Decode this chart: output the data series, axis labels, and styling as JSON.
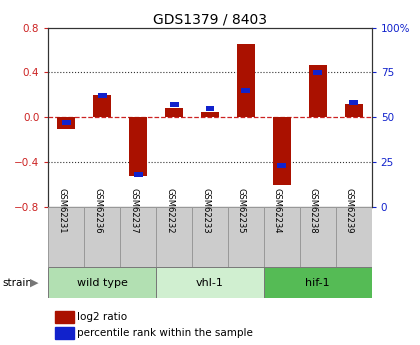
{
  "title": "GDS1379 / 8403",
  "samples": [
    "GSM62231",
    "GSM62236",
    "GSM62237",
    "GSM62232",
    "GSM62233",
    "GSM62235",
    "GSM62234",
    "GSM62238",
    "GSM62239"
  ],
  "log2_ratio": [
    -0.1,
    0.2,
    -0.52,
    0.08,
    0.05,
    0.65,
    -0.6,
    0.47,
    0.12
  ],
  "percentile_rank": [
    47,
    62,
    18,
    57,
    55,
    65,
    23,
    75,
    58
  ],
  "groups": [
    {
      "label": "wild type",
      "start": 0,
      "end": 3,
      "color": "#b2e0b2"
    },
    {
      "label": "vhl-1",
      "start": 3,
      "end": 6,
      "color": "#d0efd0"
    },
    {
      "label": "hif-1",
      "start": 6,
      "end": 9,
      "color": "#55bb55"
    }
  ],
  "ylim_left": [
    -0.8,
    0.8
  ],
  "ylim_right": [
    0,
    100
  ],
  "yticks_left": [
    -0.8,
    -0.4,
    0.0,
    0.4,
    0.8
  ],
  "yticks_right": [
    0,
    25,
    50,
    75,
    100
  ],
  "bar_color_red": "#aa1100",
  "bar_color_blue": "#1122cc",
  "zero_line_color": "#cc2222",
  "grid_color": "#333333",
  "bg_color": "#ffffff",
  "tick_label_color_left": "#cc2222",
  "tick_label_color_right": "#1122cc",
  "bar_width": 0.5,
  "blue_bar_width": 0.25
}
